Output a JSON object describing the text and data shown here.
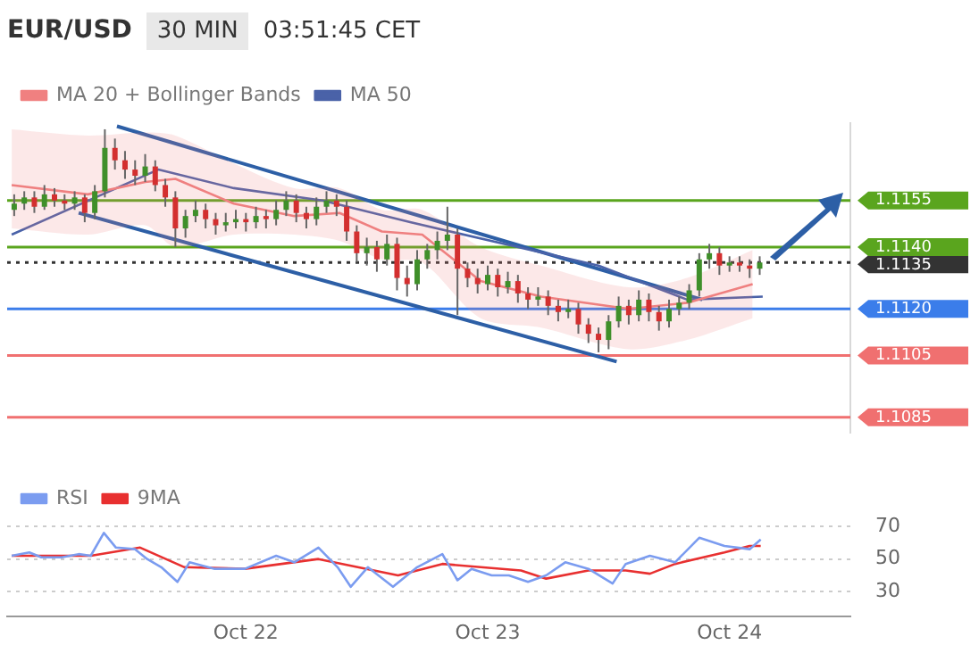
{
  "chart_data": [
    {
      "type": "candlestick",
      "title": "EUR/USD",
      "subtitle": "30 MIN",
      "annotations": [
        "03:51:45 CET"
      ],
      "legend": "top left",
      "tick_labels": "y",
      "marker": "none",
      "x": [
        "--10-21T01:00",
        "--10-21T02:00",
        "--10-21T03:00",
        "--10-21T04:00",
        "--10-21T05:00",
        "--10-21T06:00",
        "--10-21T07:00",
        "--10-21T08:00",
        "--10-21T09:00",
        "--10-21T10:00",
        "--10-21T11:00",
        "--10-21T12:00",
        "--10-21T13:00",
        "--10-21T14:00",
        "--10-21T15:00",
        "--10-21T16:00",
        "--10-21T17:00",
        "--10-21T18:00",
        "--10-21T19:00",
        "--10-21T20:00",
        "--10-21T21:00",
        "--10-21T22:00",
        "--10-21T23:00",
        "--10-22T00:00",
        "--10-22T01:00",
        "--10-22T02:00",
        "--10-22T03:00",
        "--10-22T04:00",
        "--10-22T05:00",
        "--10-22T06:00",
        "--10-22T07:00",
        "--10-22T08:00",
        "--10-22T09:00",
        "--10-22T10:00",
        "--10-22T11:00",
        "--10-22T12:00",
        "--10-22T13:00",
        "--10-22T14:00",
        "--10-22T15:00",
        "--10-22T16:00",
        "--10-22T17:00",
        "--10-22T18:00",
        "--10-22T19:00",
        "--10-22T20:00",
        "--10-22T21:00",
        "--10-22T22:00",
        "--10-22T23:00",
        "--10-23T00:00",
        "--10-23T01:00",
        "--10-23T02:00",
        "--10-23T03:00",
        "--10-23T04:00",
        "--10-23T05:00",
        "--10-23T06:00",
        "--10-23T07:00",
        "--10-23T08:00",
        "--10-23T09:00",
        "--10-23T10:00",
        "--10-23T11:00",
        "--10-23T12:00",
        "--10-23T13:00",
        "--10-23T14:00",
        "--10-23T15:00",
        "--10-23T16:00",
        "--10-23T17:00",
        "--10-23T18:00",
        "--10-23T19:00",
        "--10-23T20:00",
        "--10-23T21:00",
        "--10-23T22:00",
        "--10-23T23:00",
        "--10-24T00:00",
        "--10-24T01:00",
        "--10-24T02:00",
        "--10-24T03:00"
      ],
      "ohlc": [
        [
          1.1152,
          1.1157,
          1.115,
          1.1154
        ],
        [
          1.1154,
          1.1158,
          1.1152,
          1.1156
        ],
        [
          1.1156,
          1.1158,
          1.1151,
          1.1153
        ],
        [
          1.1153,
          1.116,
          1.1152,
          1.1157
        ],
        [
          1.1157,
          1.1159,
          1.1153,
          1.1155
        ],
        [
          1.1155,
          1.1157,
          1.1152,
          1.1154
        ],
        [
          1.1154,
          1.1158,
          1.1152,
          1.1156
        ],
        [
          1.1156,
          1.1157,
          1.1148,
          1.1151
        ],
        [
          1.1151,
          1.116,
          1.1149,
          1.1158
        ],
        [
          1.1158,
          1.1178,
          1.1156,
          1.1172
        ],
        [
          1.1172,
          1.1175,
          1.1165,
          1.1168
        ],
        [
          1.1168,
          1.1171,
          1.1162,
          1.1165
        ],
        [
          1.1165,
          1.1168,
          1.116,
          1.1163
        ],
        [
          1.1163,
          1.117,
          1.1161,
          1.1166
        ],
        [
          1.1166,
          1.1168,
          1.1158,
          1.116
        ],
        [
          1.116,
          1.1162,
          1.1153,
          1.1156
        ],
        [
          1.1156,
          1.1158,
          1.114,
          1.1146
        ],
        [
          1.1146,
          1.1152,
          1.1143,
          1.115
        ],
        [
          1.115,
          1.1155,
          1.1148,
          1.1152
        ],
        [
          1.1152,
          1.1154,
          1.1146,
          1.1149
        ],
        [
          1.1149,
          1.1151,
          1.1144,
          1.1147
        ],
        [
          1.1147,
          1.1151,
          1.1145,
          1.1148
        ],
        [
          1.1148,
          1.1152,
          1.1146,
          1.1149
        ],
        [
          1.1149,
          1.1151,
          1.1145,
          1.1148
        ],
        [
          1.1148,
          1.1153,
          1.1146,
          1.115
        ],
        [
          1.115,
          1.1152,
          1.1146,
          1.1149
        ],
        [
          1.1149,
          1.1155,
          1.1147,
          1.1152
        ],
        [
          1.1152,
          1.1158,
          1.115,
          1.1155
        ],
        [
          1.1155,
          1.1157,
          1.1148,
          1.1151
        ],
        [
          1.1151,
          1.1153,
          1.1146,
          1.1149
        ],
        [
          1.1149,
          1.1156,
          1.1147,
          1.1153
        ],
        [
          1.1153,
          1.1158,
          1.1151,
          1.1155
        ],
        [
          1.1155,
          1.1157,
          1.115,
          1.1153
        ],
        [
          1.1153,
          1.1155,
          1.1142,
          1.1145
        ],
        [
          1.1145,
          1.1147,
          1.1135,
          1.1138
        ],
        [
          1.1138,
          1.1143,
          1.1134,
          1.114
        ],
        [
          1.114,
          1.1142,
          1.1132,
          1.1136
        ],
        [
          1.1136,
          1.1144,
          1.1134,
          1.1141
        ],
        [
          1.1141,
          1.1143,
          1.1126,
          1.113
        ],
        [
          1.113,
          1.1134,
          1.1124,
          1.1128
        ],
        [
          1.1128,
          1.1139,
          1.1126,
          1.1136
        ],
        [
          1.1136,
          1.1141,
          1.1133,
          1.1139
        ],
        [
          1.1139,
          1.1145,
          1.1136,
          1.1142
        ],
        [
          1.1142,
          1.1153,
          1.1139,
          1.1144
        ],
        [
          1.1144,
          1.1146,
          1.1118,
          1.1133
        ],
        [
          1.1133,
          1.1135,
          1.1127,
          1.113
        ],
        [
          1.113,
          1.1133,
          1.1125,
          1.1128
        ],
        [
          1.1128,
          1.1134,
          1.1126,
          1.1131
        ],
        [
          1.1131,
          1.1133,
          1.1124,
          1.1127
        ],
        [
          1.1127,
          1.1132,
          1.1125,
          1.1129
        ],
        [
          1.1129,
          1.1131,
          1.1122,
          1.1125
        ],
        [
          1.1125,
          1.1127,
          1.112,
          1.1123
        ],
        [
          1.1123,
          1.1127,
          1.1121,
          1.1124
        ],
        [
          1.1124,
          1.1126,
          1.1118,
          1.1121
        ],
        [
          1.1121,
          1.1123,
          1.1116,
          1.1119
        ],
        [
          1.1119,
          1.1123,
          1.1117,
          1.112
        ],
        [
          1.112,
          1.1122,
          1.1112,
          1.1115
        ],
        [
          1.1115,
          1.1117,
          1.1109,
          1.1112
        ],
        [
          1.1112,
          1.1114,
          1.1106,
          1.111
        ],
        [
          1.111,
          1.1118,
          1.1107,
          1.1116
        ],
        [
          1.1116,
          1.1124,
          1.1114,
          1.1121
        ],
        [
          1.1121,
          1.1123,
          1.1115,
          1.1118
        ],
        [
          1.1118,
          1.1126,
          1.1116,
          1.1123
        ],
        [
          1.1123,
          1.1125,
          1.1116,
          1.1119
        ],
        [
          1.1119,
          1.1121,
          1.1113,
          1.1116
        ],
        [
          1.1116,
          1.1123,
          1.1114,
          1.112
        ],
        [
          1.112,
          1.1124,
          1.1118,
          1.1122
        ],
        [
          1.1122,
          1.1128,
          1.112,
          1.1126
        ],
        [
          1.1126,
          1.1138,
          1.1124,
          1.1136
        ],
        [
          1.1136,
          1.1141,
          1.1133,
          1.1138
        ],
        [
          1.1138,
          1.114,
          1.1131,
          1.1134
        ],
        [
          1.1134,
          1.1137,
          1.1132,
          1.1135
        ],
        [
          1.1135,
          1.1137,
          1.1132,
          1.1134
        ],
        [
          1.1134,
          1.1136,
          1.113,
          1.1133
        ],
        [
          1.1133,
          1.1137,
          1.1131,
          1.1135
        ]
      ],
      "series": [
        {
          "name": "MA 20 + Bollinger Bands",
          "type": "line",
          "color": "#f08080",
          "x": [
            "--10-21T00:45",
            "--10-21T08:18",
            "--10-21T14:00",
            "--10-21T17:00",
            "--10-21T22:48",
            "--10-22T04:48",
            "--10-22T09:18",
            "--10-22T13:30",
            "--10-22T17:30",
            "--10-22T23:18",
            "--10-23T05:18",
            "--10-23T14:00",
            "--10-23T19:48",
            "--10-24T02:18"
          ],
          "values": [
            1.116,
            1.1157,
            1.1161,
            1.1162,
            1.1154,
            1.115,
            1.1151,
            1.1145,
            1.1144,
            1.1129,
            1.1124,
            1.112,
            1.1122,
            1.1128
          ],
          "upper": [
            1.1178,
            1.1176,
            1.1177,
            1.1176,
            1.1167,
            1.1159,
            1.1159,
            1.1152,
            1.1152,
            1.114,
            1.1134,
            1.1127,
            1.113,
            1.1139
          ],
          "lower": [
            1.1146,
            1.1144,
            1.1147,
            1.114,
            1.1144,
            1.1144,
            1.1142,
            1.1136,
            1.1135,
            1.1117,
            1.1114,
            1.1107,
            1.111,
            1.1117
          ]
        },
        {
          "name": "MA 50",
          "type": "line",
          "color": "#4a62a8",
          "x": [
            "--10-21T00:45",
            "--10-21T15:18",
            "--10-21T22:48",
            "--10-22T07:36",
            "--10-22T16:18",
            "--10-23T11:00",
            "--10-23T19:48",
            "--10-24T03:18"
          ],
          "values": [
            1.1144,
            1.1165,
            1.1159,
            1.1155,
            1.1148,
            1.1134,
            1.1123,
            1.1124
          ]
        },
        {
          "type": "line",
          "color": "#2d5fa6",
          "x": [
            "--10-21T11:12",
            "--10-23T21:18"
          ],
          "values": [
            1.1179,
            1.1123
          ]
        },
        {
          "type": "line",
          "color": "#2d5fa6",
          "x": [
            "--10-21T07:24",
            "--10-23T12:48"
          ],
          "values": [
            1.1151,
            1.1103
          ]
        }
      ],
      "xlim": [
        "--10-21T00:18",
        "--10-24T12:00"
      ],
      "ylim": [
        1.108,
        1.118
      ],
      "yticks": [
        {
          "value": 1.1155,
          "label": "1.1155"
        },
        {
          "value": 1.114,
          "label": "1.1140"
        },
        {
          "value": 1.112,
          "label": "1.1120"
        },
        {
          "value": 1.1105,
          "label": "1.1105"
        },
        {
          "value": 1.1085,
          "label": "1.1085"
        }
      ],
      "ref_lines": [
        {
          "axis": "y",
          "value": 1.1155,
          "color": "#5aa51e"
        },
        {
          "axis": "y",
          "value": 1.114,
          "color": "#5aa51e"
        },
        {
          "axis": "y",
          "value": 1.1135,
          "label": "1.1135",
          "color": "#333333",
          "line_style": "dotted"
        },
        {
          "axis": "y",
          "value": 1.112,
          "color": "#3b7dea"
        },
        {
          "axis": "y",
          "value": 1.1105,
          "color": "#f07070"
        },
        {
          "axis": "y",
          "value": 1.1085,
          "color": "#f07070"
        }
      ]
    },
    {
      "type": "line",
      "legend": "top left",
      "grid": "y",
      "marker": "none",
      "series": [
        {
          "name": "RSI",
          "color": "#7b9cf0",
          "x": [
            "--10-21T00:45",
            "--10-21T02:30",
            "--10-21T03:42",
            "--10-21T05:42",
            "--10-21T07:24",
            "--10-21T08:36",
            "--10-21T09:54",
            "--10-21T11:06",
            "--10-21T13:00",
            "--10-21T14:12",
            "--10-21T15:36",
            "--10-21T17:12",
            "--10-21T18:24",
            "--10-21T20:54",
            "--10-21T23:54",
            "--10-22T03:00",
            "--10-22T04:48",
            "--10-22T07:12",
            "--10-22T09:06",
            "--10-22T10:24",
            "--10-22T12:06",
            "--10-22T14:36",
            "--10-22T17:00",
            "--10-22T19:30",
            "--10-22T21:00",
            "--10-22T22:24",
            "--10-23T00:24",
            "--10-23T02:06",
            "--10-23T04:00",
            "--10-23T05:48",
            "--10-23T07:42",
            "--10-23T10:00",
            "--10-23T12:24",
            "--10-23T13:42",
            "--10-23T16:06",
            "--10-23T18:36",
            "--10-23T21:00",
            "--10-23T23:30",
            "--10-24T02:00",
            "--10-24T03:06"
          ],
          "values": [
            52,
            54,
            51,
            51,
            53,
            52,
            66,
            57,
            56,
            50,
            45,
            36,
            48,
            44,
            44,
            52,
            48,
            57,
            45,
            33,
            45,
            33,
            45,
            53,
            37,
            44,
            40,
            40,
            36,
            40,
            48,
            44,
            35,
            47,
            52,
            48,
            63,
            58,
            56,
            62
          ]
        },
        {
          "name": "9MA",
          "color": "#e83030",
          "x": [
            "--10-21T00:45",
            "--10-21T08:36",
            "--10-21T13:30",
            "--10-21T17:54",
            "--10-21T23:54",
            "--10-22T07:12",
            "--10-22T15:06",
            "--10-22T19:30",
            "--10-23T03:18",
            "--10-23T05:48",
            "--10-23T10:00",
            "--10-23T13:42",
            "--10-23T16:06",
            "--10-23T18:36",
            "--10-23T23:30",
            "--10-24T02:00",
            "--10-24T03:06"
          ],
          "values": [
            52,
            52,
            57,
            45,
            44,
            50,
            40,
            47,
            43,
            38,
            43,
            43,
            41,
            47,
            54,
            58,
            58
          ]
        }
      ],
      "xlim": [
        "--10-21T00:18",
        "--10-24T12:00"
      ],
      "xticks": [
        {
          "value": "--10-22",
          "label": "Oct 22"
        },
        {
          "value": "--10-23",
          "label": "Oct 23"
        },
        {
          "value": "--10-24",
          "label": "Oct 24"
        }
      ],
      "ylim": [
        15,
        70
      ],
      "yticks": [
        30,
        50,
        70
      ]
    }
  ]
}
